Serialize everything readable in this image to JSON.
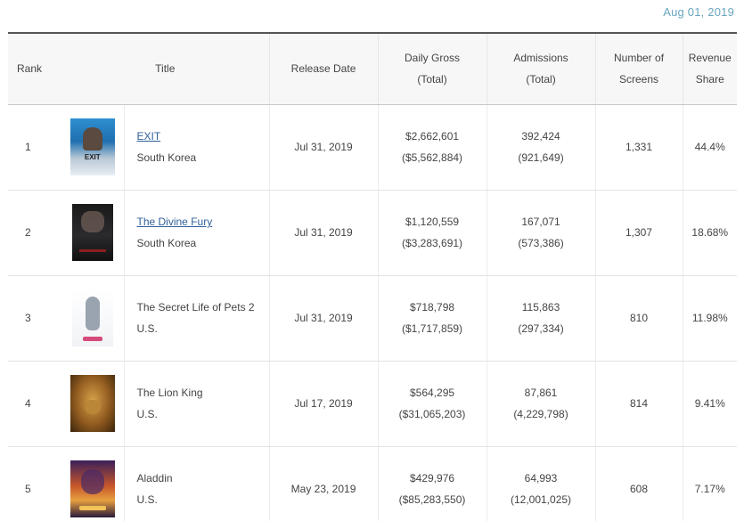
{
  "header": {
    "date": "Aug 01, 2019"
  },
  "columns": {
    "rank": "Rank",
    "title": "Title",
    "release_date": "Release Date",
    "daily_gross_1": "Daily Gross",
    "daily_gross_2": "(Total)",
    "admissions_1": "Admissions",
    "admissions_2": "(Total)",
    "screens_1": "Number of",
    "screens_2": "Screens",
    "revenue_1": "Revenue",
    "revenue_2": "Share"
  },
  "rows": [
    {
      "rank": "1",
      "poster": "exit-poster",
      "title": "EXIT",
      "linked": true,
      "country": "South Korea",
      "release": "Jul 31, 2019",
      "gross": "$2,662,601",
      "gross_total": "($5,562,884)",
      "admissions": "392,424",
      "admissions_total": "(921,649)",
      "screens": "1,331",
      "share": "44.4%"
    },
    {
      "rank": "2",
      "poster": "divine-fury-poster",
      "title": "The Divine Fury",
      "linked": true,
      "country": "South Korea",
      "release": "Jul 31, 2019",
      "gross": "$1,120,559",
      "gross_total": "($3,283,691)",
      "admissions": "167,071",
      "admissions_total": "(573,386)",
      "screens": "1,307",
      "share": "18.68%"
    },
    {
      "rank": "3",
      "poster": "secret-life-of-pets-2-poster",
      "title": "The Secret Life of Pets 2",
      "linked": false,
      "country": "U.S.",
      "release": "Jul 31, 2019",
      "gross": "$718,798",
      "gross_total": "($1,717,859)",
      "admissions": "115,863",
      "admissions_total": "(297,334)",
      "screens": "810",
      "share": "11.98%"
    },
    {
      "rank": "4",
      "poster": "lion-king-poster",
      "title": "The Lion King",
      "linked": false,
      "country": "U.S.",
      "release": "Jul 17, 2019",
      "gross": "$564,295",
      "gross_total": "($31,065,203)",
      "admissions": "87,861",
      "admissions_total": "(4,229,798)",
      "screens": "814",
      "share": "9.41%"
    },
    {
      "rank": "5",
      "poster": "aladdin-poster",
      "title": "Aladdin",
      "linked": false,
      "country": "U.S.",
      "release": "May 23, 2019",
      "gross": "$429,976",
      "gross_total": "($85,283,550)",
      "admissions": "64,993",
      "admissions_total": "(12,001,025)",
      "screens": "608",
      "share": "7.17%"
    }
  ]
}
